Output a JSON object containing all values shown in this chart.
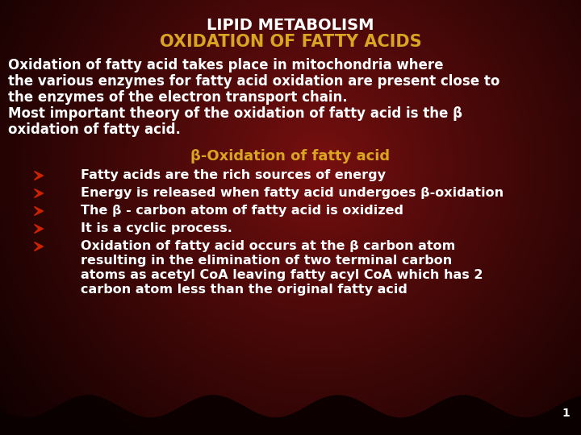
{
  "title1": "LIPID METABOLISM",
  "title2": "OXIDATION OF FATTY ACIDS",
  "title1_color": "#FFFFFF",
  "title2_color": "#DAA520",
  "body_color": "#FFFFFF",
  "beta_heading": "β-Oxidation of fatty acid",
  "beta_heading_color": "#DAA520",
  "arrow_color": "#CC2200",
  "intro_text_lines": [
    "Oxidation of fatty acid takes place in mitochondria where",
    "the various enzymes for fatty acid oxidation are present close to",
    "the enzymes of the electron transport chain.",
    "Most important theory of the oxidation of fatty acid is the β",
    "oxidation of fatty acid."
  ],
  "bullet_points": [
    "Fatty acids are the rich sources of energy",
    "Energy is released when fatty acid undergoes β-oxidation",
    "The β - carbon atom of fatty acid is oxidized",
    "It is a cyclic process.",
    "Oxidation of fatty acid occurs at the β carbon atom\nresulting in the elimination of two terminal carbon\natoms as acetyl CoA leaving fatty acyl CoA which has 2\ncarbon atom less than the original fatty acid"
  ],
  "page_number": "1",
  "figsize": [
    7.2,
    5.4
  ],
  "dpi": 100
}
